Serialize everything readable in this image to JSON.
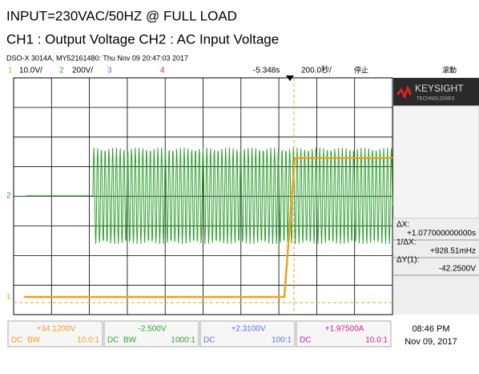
{
  "header": {
    "title": "INPUT=230VAC/50HZ @ FULL LOAD",
    "subtitle": "CH1 : Output Voltage CH2 : AC Input Voltage",
    "info": "DSO-X 3014A, MY52161480: Thu Nov 09 20:47:03 2017"
  },
  "status": {
    "ch1": "1",
    "ch1_scale": "10.0V/",
    "ch2": "2",
    "ch2_scale": "200V/",
    "ch3": "3",
    "ch4": "4",
    "delay": "-5.348s",
    "timebase": "200.0秒/",
    "run": "停止",
    "mode": "滚動"
  },
  "brand": "KEYSIGHT",
  "brand_sub": "TECHNOLOGIES",
  "measurements": [
    {
      "label": "ΔX:",
      "value": "+1.077000000000s"
    },
    {
      "label": "1/ΔX:",
      "value": "+928.51mHz"
    },
    {
      "label": "ΔY(1):",
      "value": "-42.2500V"
    }
  ],
  "channels": [
    {
      "offset": "+34.1200V",
      "coupling": "DC",
      "bw": "BW",
      "probe": "10.0:1",
      "color": "#f0a020"
    },
    {
      "offset": "-2.500V",
      "coupling": "DC",
      "bw": "BW",
      "probe": "1000:1",
      "color": "#30a030"
    },
    {
      "offset": "+2.3100V",
      "coupling": "DC",
      "probe": "100:1",
      "color": "#6070e0"
    },
    {
      "offset": "+1.97500A",
      "coupling": "DC",
      "probe": "10.0:1",
      "color": "#d02090"
    }
  ],
  "clock": {
    "time": "08:46 PM",
    "date": "Nov 09, 2017"
  },
  "markers": {
    "ch2": "2",
    "ch1": "1"
  }
}
